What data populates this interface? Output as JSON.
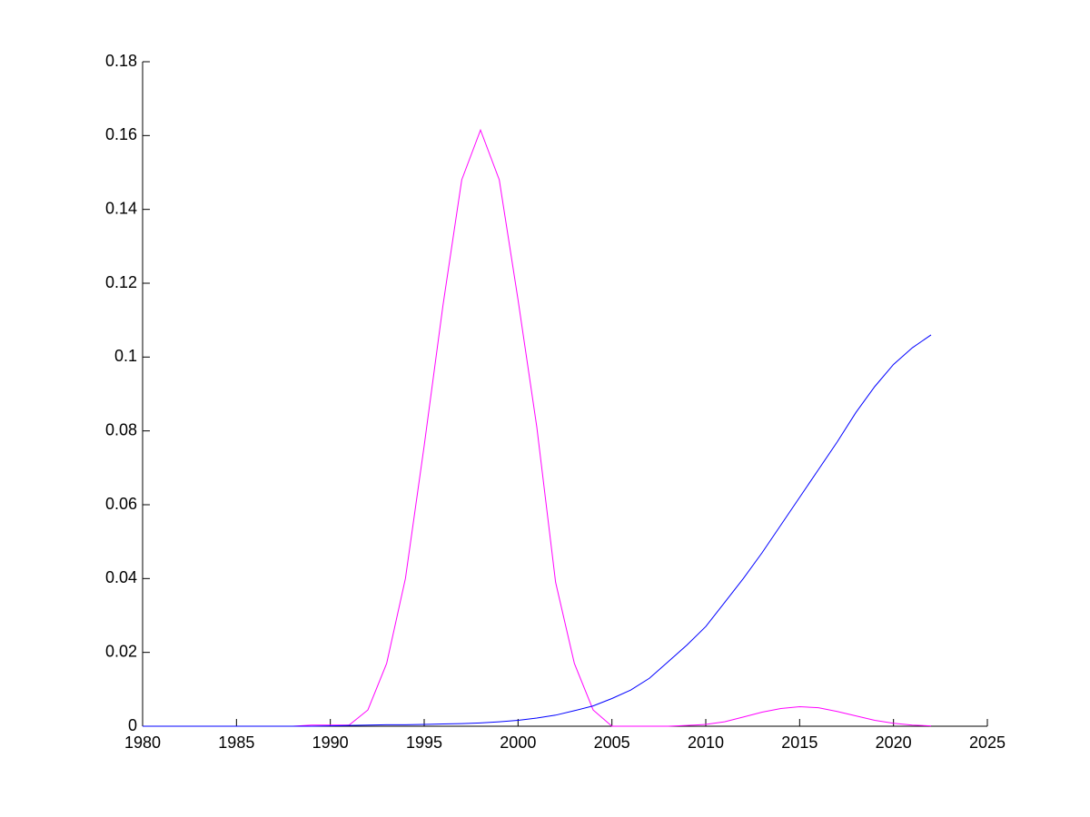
{
  "chart_data": {
    "type": "line",
    "x": [
      1980,
      1981,
      1982,
      1983,
      1984,
      1985,
      1986,
      1987,
      1988,
      1989,
      1990,
      1991,
      1992,
      1993,
      1994,
      1995,
      1996,
      1997,
      1998,
      1999,
      2000,
      2001,
      2002,
      2003,
      2004,
      2005,
      2006,
      2007,
      2008,
      2009,
      2010,
      2011,
      2012,
      2013,
      2014,
      2015,
      2016,
      2017,
      2018,
      2019,
      2020,
      2021,
      2022
    ],
    "series": [
      {
        "color": "#ff00ff",
        "values": [
          0,
          0,
          0,
          0,
          0,
          0,
          0,
          0,
          0,
          0.0003,
          0.0003,
          0.0003,
          0.0044,
          0.017,
          0.04,
          0.076,
          0.114,
          0.148,
          0.1615,
          0.148,
          0.1155,
          0.081,
          0.039,
          0.017,
          0.0044,
          0,
          0,
          0,
          0,
          0.0002,
          0.0005,
          0.0012,
          0.0025,
          0.0038,
          0.0048,
          0.0053,
          0.005,
          0.004,
          0.0028,
          0.0016,
          0.0008,
          0.0003,
          0.0001
        ]
      },
      {
        "color": "#0000ff",
        "values": [
          0,
          0,
          0,
          0,
          0,
          0,
          0,
          0,
          0,
          0,
          0.0001,
          0.0002,
          0.0003,
          0.0004,
          0.0004,
          0.0005,
          0.0006,
          0.0007,
          0.0009,
          0.0012,
          0.0016,
          0.0022,
          0.003,
          0.0042,
          0.0055,
          0.0075,
          0.0098,
          0.013,
          0.0175,
          0.022,
          0.027,
          0.0335,
          0.04,
          0.047,
          0.0545,
          0.062,
          0.0695,
          0.077,
          0.085,
          0.092,
          0.098,
          0.1025,
          0.106
        ]
      }
    ],
    "xlim": [
      1980,
      2025
    ],
    "xticks": [
      1980,
      1985,
      1990,
      1995,
      2000,
      2005,
      2010,
      2015,
      2020,
      2025
    ],
    "ylim": [
      0,
      0.18
    ],
    "yticks": [
      0,
      0.02,
      0.04,
      0.06,
      0.08,
      0.1,
      0.12,
      0.14,
      0.16,
      0.18
    ]
  }
}
